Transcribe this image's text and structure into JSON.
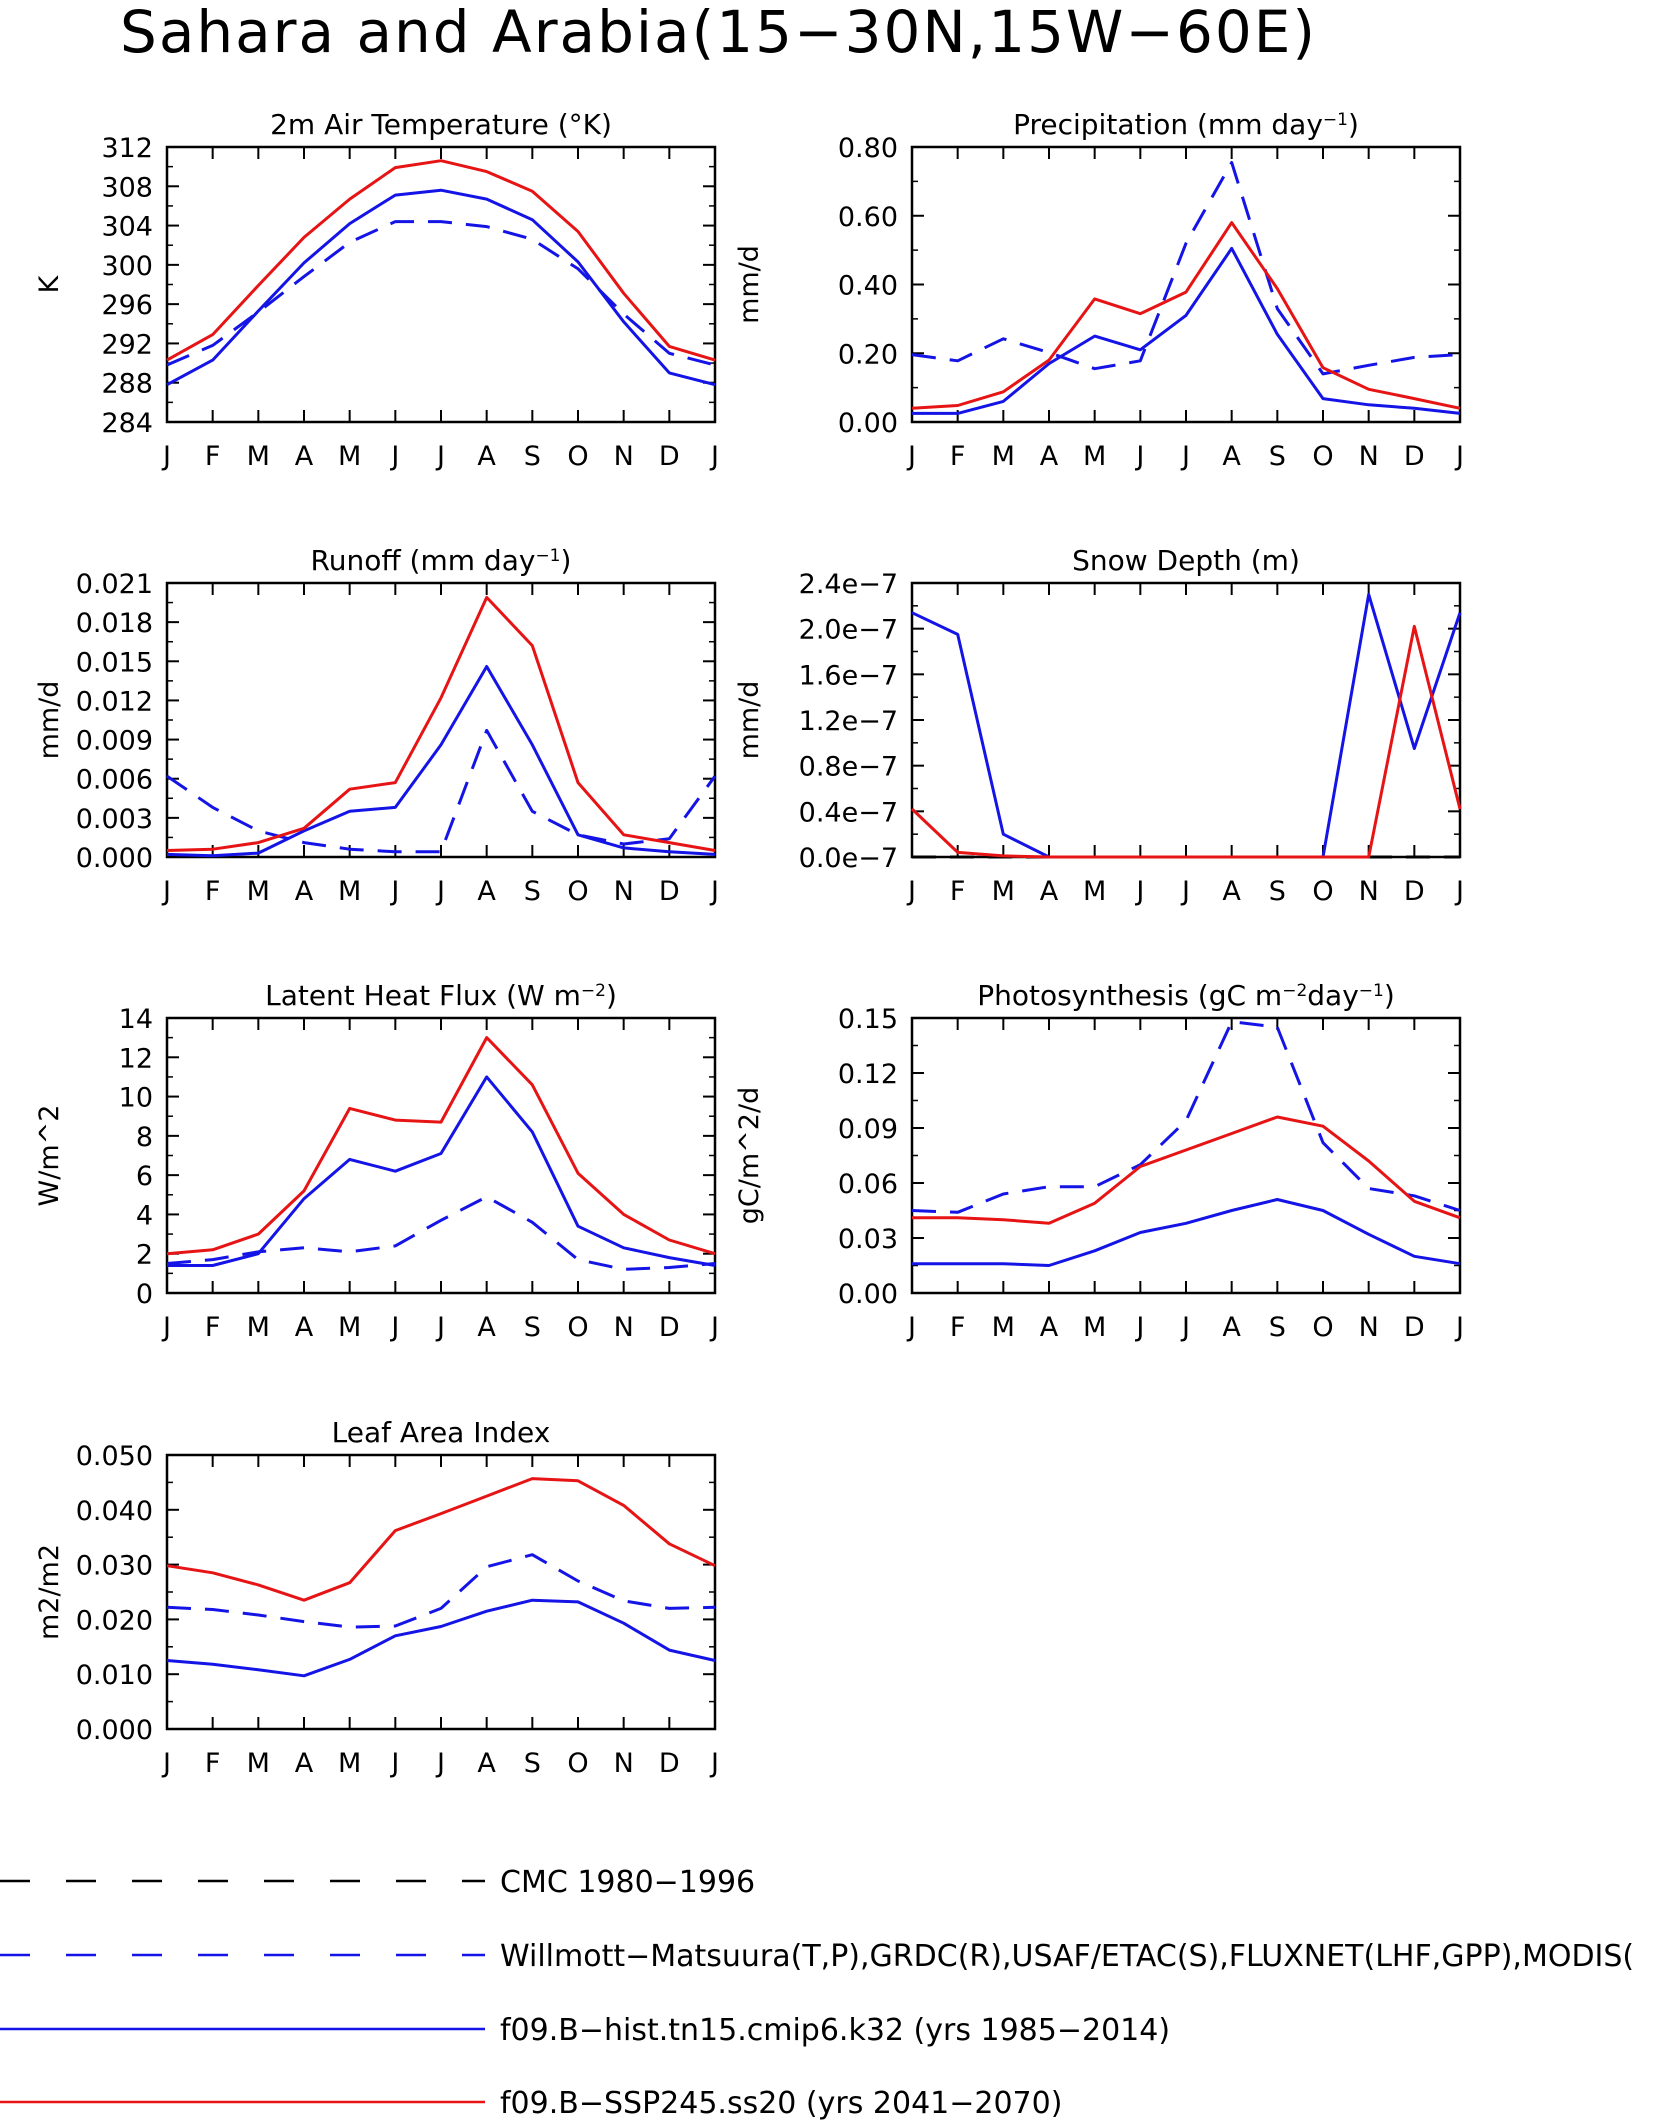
{
  "figure": {
    "title": "Sahara and Arabia(15−30N,15W−60E)"
  },
  "colors": {
    "obs": "#1414e6",
    "hist": "#1414e6",
    "ssp": "#e61414",
    "cmc": "#000000"
  },
  "months": [
    "J",
    "F",
    "M",
    "A",
    "M",
    "J",
    "J",
    "A",
    "S",
    "O",
    "N",
    "D",
    "J"
  ],
  "legend": [
    {
      "key": "cmc",
      "label": "CMC 1980−1996",
      "color": "#000000",
      "dash": true
    },
    {
      "key": "obs",
      "label": "Willmott−Matsuura(T,P),GRDC(R),USAF/ETAC(S),FLUXNET(LHF,GPP),MODIS(",
      "color": "#1414e6",
      "dash": true
    },
    {
      "key": "hist",
      "label": "f09.B−hist.tn15.cmip6.k32 (yrs 1985−2014)",
      "color": "#1414e6",
      "dash": false
    },
    {
      "key": "ssp",
      "label": "f09.B−SSP245.ss20 (yrs 2041−2070)",
      "color": "#e61414",
      "dash": false
    }
  ],
  "chart_data": [
    {
      "type": "line",
      "title": "2m Air Temperature (°K)",
      "ylabel": "K",
      "ylim": [
        284,
        312
      ],
      "yticks": [
        284,
        288,
        292,
        296,
        300,
        304,
        308,
        312
      ],
      "ytick_labels": [
        "284",
        "288",
        "292",
        "296",
        "300",
        "304",
        "308",
        "312"
      ],
      "categories": [
        "J",
        "F",
        "M",
        "A",
        "M",
        "J",
        "J",
        "A",
        "S",
        "O",
        "N",
        "D",
        "J"
      ],
      "series": [
        {
          "key": "obs",
          "values": [
            289.8,
            291.8,
            295.2,
            298.8,
            302.3,
            304.4,
            304.4,
            303.9,
            302.6,
            299.6,
            295.0,
            291.0,
            289.8
          ]
        },
        {
          "key": "hist",
          "values": [
            287.8,
            290.3,
            295.3,
            300.2,
            304.2,
            307.1,
            307.6,
            306.7,
            304.6,
            300.3,
            294.2,
            289.0,
            287.8
          ]
        },
        {
          "key": "ssp",
          "values": [
            290.3,
            292.9,
            297.9,
            302.8,
            306.7,
            309.9,
            310.6,
            309.5,
            307.5,
            303.4,
            297.1,
            291.7,
            290.3
          ]
        }
      ]
    },
    {
      "type": "line",
      "title": "Precipitation (mm day",
      "title_sup": "−1",
      "title_end": ")",
      "ylabel": "mm/d",
      "ylim": [
        0,
        0.8
      ],
      "yticks": [
        0,
        0.2,
        0.4,
        0.6,
        0.8
      ],
      "ytick_labels": [
        "0.00",
        "0.20",
        "0.40",
        "0.60",
        "0.80"
      ],
      "categories": [
        "J",
        "F",
        "M",
        "A",
        "M",
        "J",
        "J",
        "A",
        "S",
        "O",
        "N",
        "D",
        "J"
      ],
      "series": [
        {
          "key": "obs",
          "values": [
            0.196,
            0.178,
            0.242,
            0.202,
            0.155,
            0.178,
            0.52,
            0.755,
            0.33,
            0.14,
            0.165,
            0.188,
            0.196
          ]
        },
        {
          "key": "hist",
          "values": [
            0.025,
            0.025,
            0.06,
            0.17,
            0.25,
            0.21,
            0.31,
            0.505,
            0.255,
            0.068,
            0.05,
            0.04,
            0.025
          ]
        },
        {
          "key": "ssp",
          "values": [
            0.04,
            0.048,
            0.088,
            0.18,
            0.358,
            0.315,
            0.378,
            0.58,
            0.388,
            0.158,
            0.095,
            0.068,
            0.04
          ]
        }
      ]
    },
    {
      "type": "line",
      "title": "Runoff (mm day",
      "title_sup": "−1",
      "title_end": ")",
      "ylabel": "mm/d",
      "ylim": [
        0,
        0.021
      ],
      "yticks": [
        0,
        0.003,
        0.006,
        0.009,
        0.012,
        0.015,
        0.018,
        0.021
      ],
      "ytick_labels": [
        "0.000",
        "0.003",
        "0.006",
        "0.009",
        "0.012",
        "0.015",
        "0.018",
        "0.021"
      ],
      "categories": [
        "J",
        "F",
        "M",
        "A",
        "M",
        "J",
        "J",
        "A",
        "S",
        "O",
        "N",
        "D",
        "J"
      ],
      "series": [
        {
          "key": "obs",
          "values": [
            0.0062,
            0.0038,
            0.002,
            0.0011,
            0.0006,
            0.0004,
            0.0004,
            0.0097,
            0.0035,
            0.0017,
            0.001,
            0.0014,
            0.0062
          ]
        },
        {
          "key": "hist",
          "values": [
            0.0002,
            0.0001,
            0.0003,
            0.002,
            0.0035,
            0.0038,
            0.0086,
            0.0146,
            0.0086,
            0.0017,
            0.0007,
            0.0004,
            0.0002
          ]
        },
        {
          "key": "ssp",
          "values": [
            0.0005,
            0.0006,
            0.0011,
            0.0022,
            0.0052,
            0.0057,
            0.0122,
            0.0199,
            0.0162,
            0.0057,
            0.0017,
            0.0011,
            0.0005
          ]
        }
      ]
    },
    {
      "type": "line",
      "title": "Snow Depth (m)",
      "ylabel": "mm/d",
      "ylim": [
        0,
        2.4e-07
      ],
      "yticks": [
        0,
        4e-08,
        8e-08,
        1.2e-07,
        1.6e-07,
        2e-07,
        2.4e-07
      ],
      "ytick_labels": [
        "0.0e−7",
        "0.4e−7",
        "0.8e−7",
        "1.2e−7",
        "1.6e−7",
        "2.0e−7",
        "2.4e−7"
      ],
      "categories": [
        "J",
        "F",
        "M",
        "A",
        "M",
        "J",
        "J",
        "A",
        "S",
        "O",
        "N",
        "D",
        "J"
      ],
      "series": [
        {
          "key": "cmc",
          "values": [
            0,
            0,
            0,
            0,
            0,
            0,
            0,
            0,
            0,
            0,
            0,
            0,
            0
          ]
        },
        {
          "key": "hist",
          "values": [
            2.14e-07,
            1.95e-07,
            2e-08,
            0,
            0,
            0,
            0,
            0,
            0,
            0,
            2.3e-07,
            9.5e-08,
            2.14e-07
          ]
        },
        {
          "key": "ssp",
          "values": [
            4.2e-08,
            4e-09,
            1e-09,
            0,
            0,
            0,
            0,
            0,
            0,
            0,
            0,
            2.02e-07,
            4.2e-08
          ]
        }
      ]
    },
    {
      "type": "line",
      "title": "Latent Heat Flux (W m",
      "title_sup": "−2",
      "title_end": ")",
      "ylabel": "W/m^2",
      "ylim": [
        0,
        14
      ],
      "yticks": [
        0,
        2,
        4,
        6,
        8,
        10,
        12,
        14
      ],
      "ytick_labels": [
        "0",
        "2",
        "4",
        "6",
        "8",
        "10",
        "12",
        "14"
      ],
      "categories": [
        "J",
        "F",
        "M",
        "A",
        "M",
        "J",
        "J",
        "A",
        "S",
        "O",
        "N",
        "D",
        "J"
      ],
      "series": [
        {
          "key": "obs",
          "values": [
            1.5,
            1.7,
            2.1,
            2.3,
            2.1,
            2.4,
            3.7,
            4.9,
            3.6,
            1.7,
            1.2,
            1.3,
            1.5
          ]
        },
        {
          "key": "hist",
          "values": [
            1.4,
            1.4,
            2.0,
            4.8,
            6.8,
            6.2,
            7.1,
            11.0,
            8.2,
            3.4,
            2.3,
            1.8,
            1.4
          ]
        },
        {
          "key": "ssp",
          "values": [
            2.0,
            2.2,
            3.0,
            5.2,
            9.4,
            8.8,
            8.7,
            13.0,
            10.6,
            6.1,
            4.0,
            2.7,
            2.0
          ]
        }
      ]
    },
    {
      "type": "line",
      "title": "Photosynthesis (gC m",
      "title_sup": "−2",
      "title_mid": "day",
      "title_sup2": "−1",
      "title_end": ")",
      "ylabel": "gC/m^2/d",
      "ylim": [
        0,
        0.15
      ],
      "yticks": [
        0,
        0.03,
        0.06,
        0.09,
        0.12,
        0.15
      ],
      "ytick_labels": [
        "0.00",
        "0.03",
        "0.06",
        "0.09",
        "0.12",
        "0.15"
      ],
      "categories": [
        "J",
        "F",
        "M",
        "A",
        "M",
        "J",
        "J",
        "A",
        "S",
        "O",
        "N",
        "D",
        "J"
      ],
      "series": [
        {
          "key": "obs",
          "values": [
            0.045,
            0.044,
            0.054,
            0.058,
            0.058,
            0.07,
            0.094,
            0.148,
            0.145,
            0.082,
            0.057,
            0.053,
            0.045
          ]
        },
        {
          "key": "hist",
          "values": [
            0.016,
            0.016,
            0.016,
            0.015,
            0.023,
            0.033,
            0.038,
            0.045,
            0.051,
            0.045,
            0.032,
            0.02,
            0.016
          ]
        },
        {
          "key": "ssp",
          "values": [
            0.041,
            0.041,
            0.04,
            0.038,
            0.049,
            0.069,
            0.078,
            0.087,
            0.096,
            0.091,
            0.072,
            0.05,
            0.041
          ]
        }
      ]
    },
    {
      "type": "line",
      "title": "Leaf Area Index",
      "ylabel": "m2/m2",
      "ylim": [
        0,
        0.05
      ],
      "yticks": [
        0,
        0.01,
        0.02,
        0.03,
        0.04,
        0.05
      ],
      "ytick_labels": [
        "0.000",
        "0.010",
        "0.020",
        "0.030",
        "0.040",
        "0.050"
      ],
      "categories": [
        "J",
        "F",
        "M",
        "A",
        "M",
        "J",
        "J",
        "A",
        "S",
        "O",
        "N",
        "D",
        "J"
      ],
      "series": [
        {
          "key": "obs",
          "values": [
            0.0222,
            0.0218,
            0.0208,
            0.0196,
            0.0186,
            0.0188,
            0.022,
            0.0296,
            0.0318,
            0.027,
            0.0234,
            0.022,
            0.0222
          ]
        },
        {
          "key": "hist",
          "values": [
            0.0125,
            0.0118,
            0.0108,
            0.0097,
            0.0127,
            0.017,
            0.0187,
            0.0215,
            0.0235,
            0.0232,
            0.0193,
            0.0144,
            0.0125
          ]
        },
        {
          "key": "ssp",
          "values": [
            0.0298,
            0.0285,
            0.0263,
            0.0235,
            0.0267,
            0.0362,
            0.0393,
            0.0425,
            0.0457,
            0.0453,
            0.0408,
            0.0338,
            0.0298
          ]
        }
      ]
    }
  ]
}
